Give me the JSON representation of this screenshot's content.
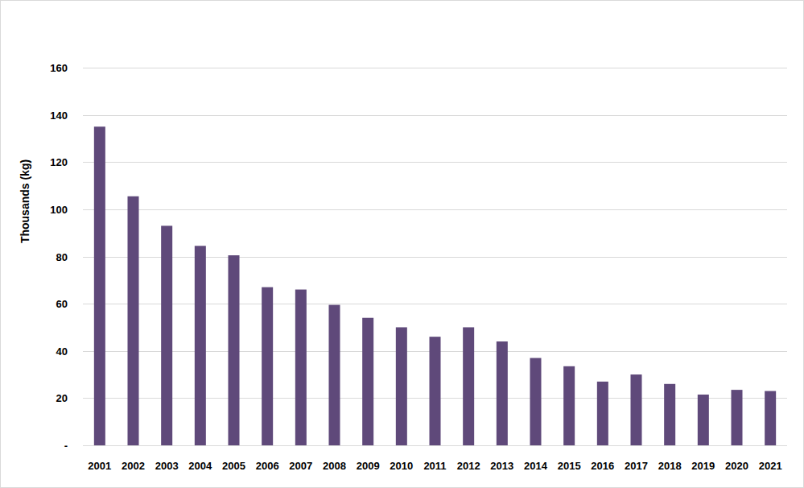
{
  "chart_data": {
    "type": "bar",
    "y_label": "Thousands (kg)",
    "categories": [
      "2001",
      "2002",
      "2003",
      "2004",
      "2005",
      "2006",
      "2007",
      "2008",
      "2009",
      "2010",
      "2011",
      "2012",
      "2013",
      "2014",
      "2015",
      "2016",
      "2017",
      "2018",
      "2019",
      "2020",
      "2021"
    ],
    "values": [
      135,
      105.5,
      93,
      84.5,
      80.5,
      67,
      66,
      59.5,
      54,
      50,
      46,
      50,
      44,
      37,
      33.5,
      27,
      30,
      26,
      21.5,
      23.5,
      23
    ],
    "color": "#5f497a",
    "ylim": [
      0,
      160
    ],
    "yticks": [
      {
        "value": 0,
        "label": "-"
      },
      20,
      40,
      60,
      80,
      100,
      120,
      140,
      160
    ],
    "grid": true
  }
}
